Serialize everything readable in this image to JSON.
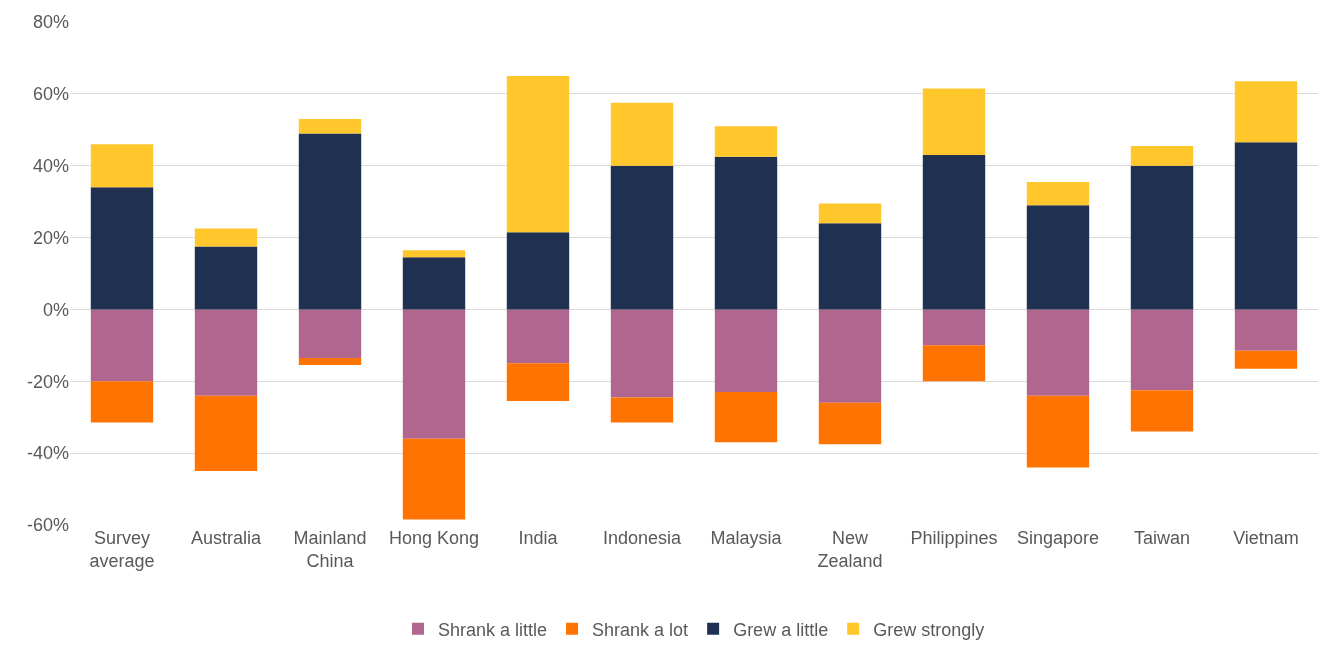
{
  "chart_data": {
    "type": "bar",
    "stacked": true,
    "categories": [
      "Survey average",
      "Australia",
      "Mainland China",
      "Hong Kong",
      "India",
      "Indonesia",
      "Malaysia",
      "New Zealand",
      "Philippines",
      "Singapore",
      "Taiwan",
      "Vietnam"
    ],
    "series": [
      {
        "name": "Shrank a little",
        "color": "#b0668f",
        "values": [
          -20,
          -24,
          -13.5,
          -36,
          -15,
          -24.5,
          -23,
          -26,
          -10,
          -24,
          -22.5,
          -11.5
        ]
      },
      {
        "name": "Shrank a lot",
        "color": "#ff7300",
        "values": [
          -11.5,
          -21,
          -2,
          -22.5,
          -10.5,
          -7,
          -14,
          -11.5,
          -10,
          -20,
          -11.5,
          -5
        ]
      },
      {
        "name": "Grew a little",
        "color": "#203050",
        "values": [
          34,
          17.5,
          49,
          14.5,
          21.5,
          40,
          42.5,
          24,
          43,
          29,
          40,
          46.5
        ]
      },
      {
        "name": "Grew strongly",
        "color": "#ffc72c",
        "values": [
          12,
          5,
          4,
          2,
          43.5,
          17.5,
          8.5,
          5.5,
          18.5,
          6.5,
          5.5,
          17
        ]
      }
    ],
    "ylim": [
      -60,
      80
    ],
    "yticks": [
      {
        "value": -60,
        "label": "-60%"
      },
      {
        "value": -40,
        "label": "-40%"
      },
      {
        "value": -20,
        "label": "-20%"
      },
      {
        "value": 0,
        "label": "0%"
      },
      {
        "value": 20,
        "label": "20%"
      },
      {
        "value": 40,
        "label": "40%"
      },
      {
        "value": 60,
        "label": "60%"
      },
      {
        "value": 80,
        "label": "80%"
      }
    ],
    "grid": "y",
    "legend": "bottom"
  }
}
